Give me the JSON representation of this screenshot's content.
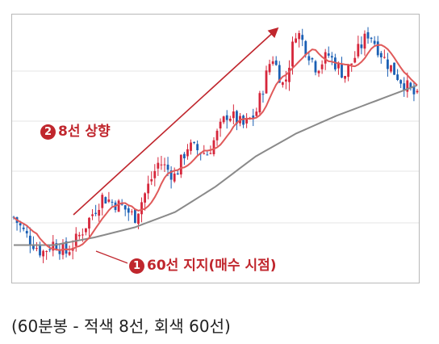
{
  "chart_data": {
    "type": "candlestick",
    "title": "",
    "xlabel": "",
    "ylabel": "",
    "grid": true,
    "colors": {
      "up": "#d6263b",
      "down": "#1a5fb4",
      "ma8": "#e05a5a",
      "ma60": "#8a8a8a",
      "annotation": "#c0262d",
      "arrow": "#c0262d"
    },
    "ylim": [
      0,
      100
    ],
    "price_path": [
      [
        0,
        22
      ],
      [
        3,
        15
      ],
      [
        7,
        8
      ],
      [
        10,
        12
      ],
      [
        13,
        8
      ],
      [
        16,
        14
      ],
      [
        22,
        30
      ],
      [
        27,
        26
      ],
      [
        30,
        22
      ],
      [
        36,
        44
      ],
      [
        40,
        38
      ],
      [
        43,
        50
      ],
      [
        48,
        47
      ],
      [
        53,
        63
      ],
      [
        57,
        58
      ],
      [
        60,
        63
      ],
      [
        64,
        86
      ],
      [
        67,
        73
      ],
      [
        70,
        96
      ],
      [
        75,
        81
      ],
      [
        78,
        86
      ],
      [
        82,
        78
      ],
      [
        88,
        95
      ],
      [
        92,
        84
      ],
      [
        96,
        76
      ],
      [
        100,
        69
      ]
    ],
    "ma60_path": [
      [
        0,
        11
      ],
      [
        10,
        11
      ],
      [
        20,
        14
      ],
      [
        30,
        18
      ],
      [
        40,
        24
      ],
      [
        50,
        34
      ],
      [
        60,
        46
      ],
      [
        70,
        55
      ],
      [
        80,
        62
      ],
      [
        90,
        68
      ],
      [
        100,
        74
      ]
    ],
    "annotations": [
      {
        "id": "2",
        "text": "8선 상향"
      },
      {
        "id": "1",
        "text": "60선 지지(매수 시점)"
      }
    ]
  },
  "caption": "(60분봉 - 적색 8선, 회색 60선)"
}
